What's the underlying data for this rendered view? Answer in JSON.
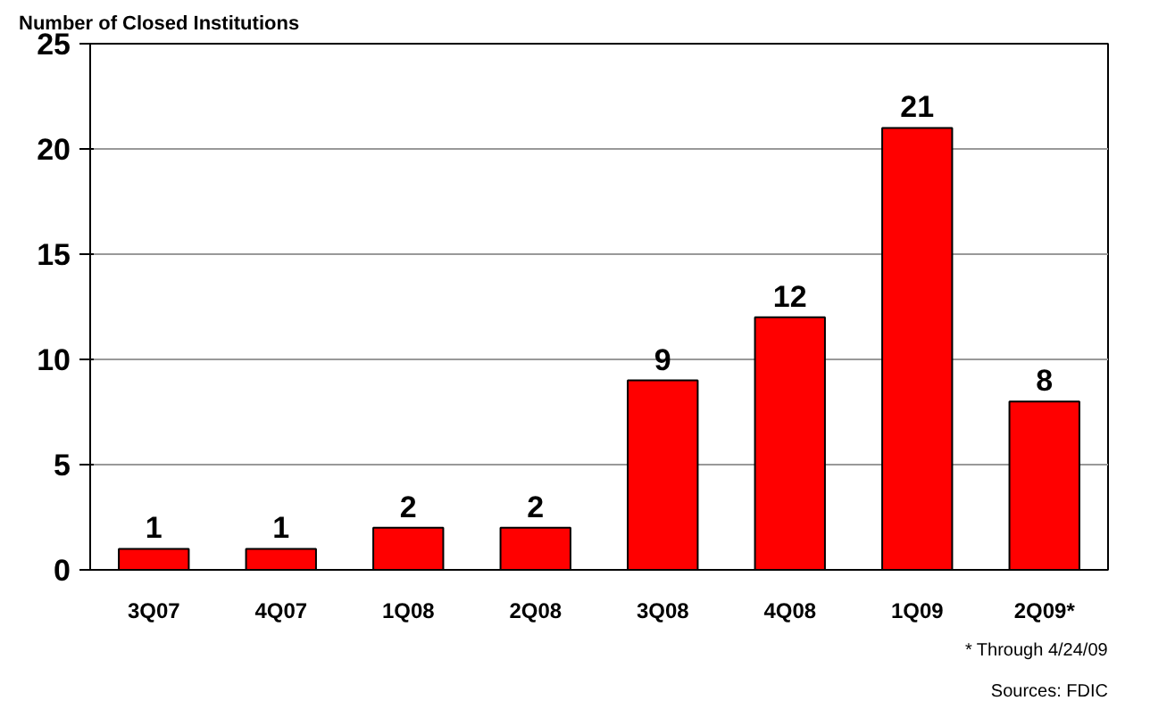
{
  "chart_data": {
    "type": "bar",
    "title": "Number of Closed Institutions",
    "categories": [
      "3Q07",
      "4Q07",
      "1Q08",
      "2Q08",
      "3Q08",
      "4Q08",
      "1Q09",
      "2Q09*"
    ],
    "values": [
      1,
      1,
      2,
      2,
      9,
      12,
      21,
      8
    ],
    "color": "#ff0000",
    "ylim": [
      0,
      25
    ],
    "yticks": [
      0,
      5,
      10,
      15,
      20,
      25
    ],
    "grid": "y",
    "data_labels": true,
    "annotations": [
      "* Through 4/24/09",
      "Sources: FDIC"
    ]
  }
}
